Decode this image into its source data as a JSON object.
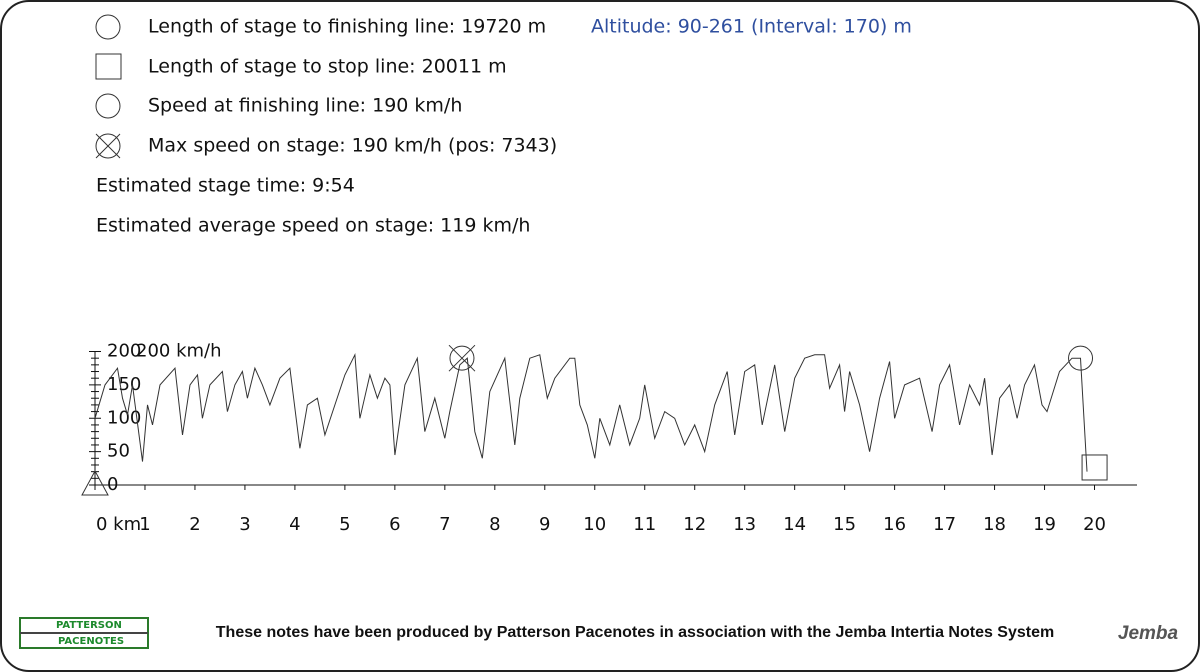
{
  "header": {
    "lines": [
      "Length of stage to finishing line: 19720 m",
      "Length of stage to stop line: 20011 m",
      "Speed at finishing line: 190 km/h",
      "Max speed on stage: 190 km/h (pos: 7343)",
      "Estimated stage time: 9:54",
      "Estimated average speed on stage: 119 km/h"
    ],
    "altitude": "Altitude: 90-261 (Interval: 170) m"
  },
  "chart_data": {
    "type": "line",
    "y_unit_label": "200 km/h",
    "xlim": [
      0,
      20.85
    ],
    "ylim": [
      0,
      200
    ],
    "xticks": [
      {
        "value": 0,
        "label": "0 km"
      },
      1,
      2,
      3,
      4,
      5,
      6,
      7,
      8,
      9,
      10,
      11,
      12,
      13,
      14,
      15,
      16,
      17,
      18,
      19,
      20
    ],
    "yticks": [
      0,
      50,
      100,
      150,
      200
    ],
    "yticks_minor": [
      10,
      20,
      30,
      40,
      60,
      70,
      80,
      90,
      110,
      120,
      130,
      140,
      160,
      170,
      180,
      190
    ],
    "x": [
      0,
      0.2,
      0.45,
      0.55,
      0.65,
      0.75,
      0.95,
      1.05,
      1.15,
      1.3,
      1.6,
      1.75,
      1.9,
      2.05,
      2.15,
      2.3,
      2.55,
      2.65,
      2.8,
      2.95,
      3.05,
      3.2,
      3.35,
      3.5,
      3.7,
      3.9,
      4.1,
      4.25,
      4.45,
      4.6,
      4.8,
      5.0,
      5.2,
      5.3,
      5.5,
      5.65,
      5.8,
      5.9,
      6.0,
      6.2,
      6.45,
      6.6,
      6.8,
      7.0,
      7.1,
      7.3,
      7.45,
      7.6,
      7.75,
      7.9,
      8.2,
      8.4,
      8.5,
      8.7,
      8.9,
      9.05,
      9.2,
      9.5,
      9.6,
      9.7,
      9.85,
      10.0,
      10.1,
      10.3,
      10.5,
      10.7,
      10.9,
      11.0,
      11.2,
      11.4,
      11.6,
      11.8,
      12.0,
      12.2,
      12.4,
      12.65,
      12.8,
      13.0,
      13.2,
      13.35,
      13.6,
      13.8,
      14.0,
      14.2,
      14.4,
      14.6,
      14.7,
      14.9,
      15.0,
      15.1,
      15.3,
      15.5,
      15.7,
      15.9,
      16.0,
      16.2,
      16.5,
      16.75,
      16.9,
      17.1,
      17.3,
      17.5,
      17.7,
      17.8,
      17.95,
      18.1,
      18.3,
      18.45,
      18.6,
      18.8,
      18.95,
      19.05,
      19.3,
      19.55,
      19.72,
      19.85
    ],
    "series": [
      {
        "color": "#333333",
        "values": [
          100,
          150,
          175,
          130,
          105,
          150,
          35,
          120,
          90,
          150,
          175,
          75,
          150,
          165,
          100,
          150,
          170,
          110,
          150,
          170,
          130,
          175,
          150,
          120,
          160,
          175,
          55,
          120,
          130,
          75,
          120,
          165,
          195,
          100,
          165,
          130,
          160,
          150,
          45,
          150,
          190,
          80,
          130,
          70,
          110,
          180,
          190,
          80,
          40,
          140,
          190,
          60,
          130,
          190,
          195,
          130,
          160,
          190,
          190,
          120,
          90,
          40,
          100,
          60,
          120,
          60,
          100,
          150,
          70,
          110,
          100,
          60,
          90,
          50,
          120,
          170,
          75,
          170,
          180,
          90,
          180,
          80,
          160,
          190,
          195,
          195,
          145,
          180,
          110,
          170,
          120,
          50,
          130,
          185,
          100,
          150,
          160,
          80,
          150,
          180,
          90,
          150,
          120,
          160,
          45,
          130,
          150,
          100,
          150,
          180,
          120,
          110,
          170,
          190,
          190,
          20
        ]
      }
    ],
    "markers": {
      "start": {
        "x": 0,
        "y": 0
      },
      "max": {
        "x": 7.343,
        "y": 190
      },
      "finish": {
        "x": 19.72,
        "y": 190
      },
      "stop": {
        "x": 20.011,
        "y": 27
      }
    }
  },
  "footer": {
    "text": "These notes have been produced by Patterson Pacenotes in association with the Jemba Intertia Notes System",
    "logo_top": "PATTERSON",
    "logo_bottom": "PACENOTES",
    "jemba": "Jemba"
  }
}
